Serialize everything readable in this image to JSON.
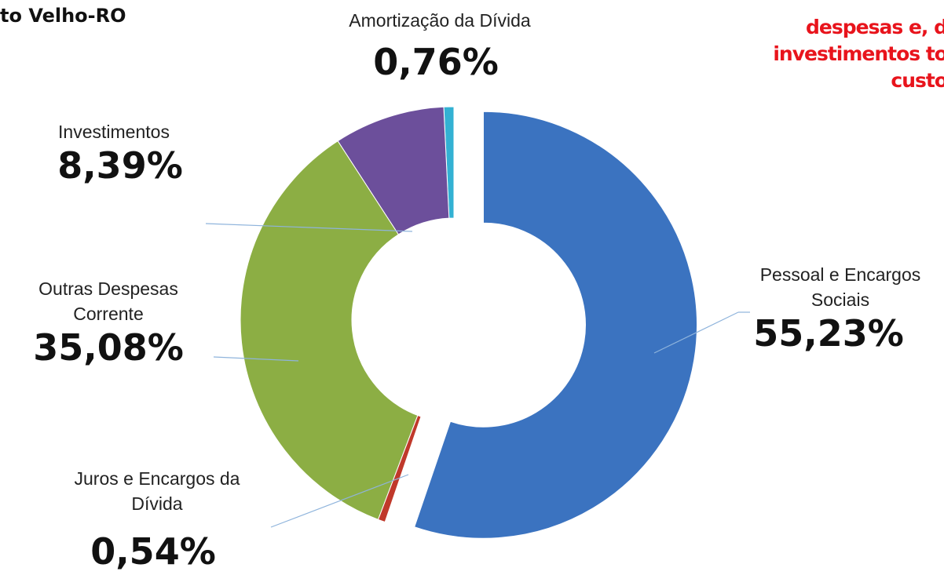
{
  "header": {
    "title": "to Velho-RO",
    "side_text": [
      "despesas e, d",
      "investimentos to",
      "custo"
    ]
  },
  "chart_data": {
    "type": "donut",
    "categories": [
      "Pessoal e Encargos Sociais",
      "Juros e Encargos da Dívida",
      "Outras Despesas Corrente",
      "Investimentos",
      "Amortização da Dívida"
    ],
    "values": [
      55.23,
      0.54,
      35.08,
      8.39,
      0.76
    ],
    "value_labels": [
      "55,23%",
      "0,54%",
      "35,08%",
      "8,39%",
      "0,76%"
    ],
    "colors": [
      "#3b73c0",
      "#c0392b",
      "#8cae44",
      "#6c4f9b",
      "#33b1d3"
    ]
  }
}
